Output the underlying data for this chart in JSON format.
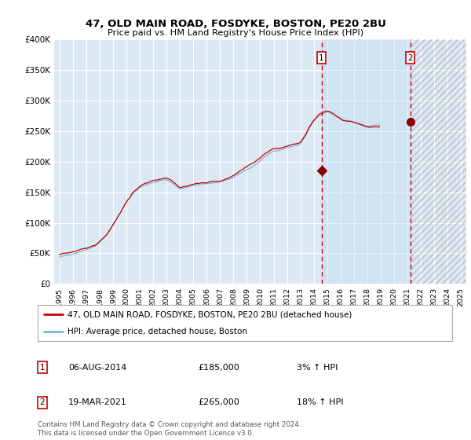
{
  "title": "47, OLD MAIN ROAD, FOSDYKE, BOSTON, PE20 2BU",
  "subtitle": "Price paid vs. HM Land Registry's House Price Index (HPI)",
  "background_color": "#ffffff",
  "plot_bg_color": "#dce9f5",
  "grid_color": "#ffffff",
  "hpi_line_color": "#7ab8d4",
  "price_line_color": "#cc0000",
  "marker_color": "#8b0000",
  "dashed_line_color": "#cc0000",
  "shade_color": "#cce0f0",
  "legend_label_price": "47, OLD MAIN ROAD, FOSDYKE, BOSTON, PE20 2BU (detached house)",
  "legend_label_hpi": "HPI: Average price, detached house, Boston",
  "annotation1_date": "06-AUG-2014",
  "annotation1_price": "£185,000",
  "annotation1_pct": "3% ↑ HPI",
  "annotation2_date": "19-MAR-2021",
  "annotation2_price": "£265,000",
  "annotation2_pct": "18% ↑ HPI",
  "footer": "Contains HM Land Registry data © Crown copyright and database right 2024.\nThis data is licensed under the Open Government Licence v3.0.",
  "ylim": [
    0,
    400000
  ],
  "yticks": [
    0,
    50000,
    100000,
    150000,
    200000,
    250000,
    300000,
    350000,
    400000
  ],
  "ytick_labels": [
    "£0",
    "£50K",
    "£100K",
    "£150K",
    "£200K",
    "£250K",
    "£300K",
    "£350K",
    "£400K"
  ],
  "marker1_x": 2014.58,
  "marker1_y": 185000,
  "marker2_x": 2021.21,
  "marker2_y": 265000,
  "xlim_left": 1994.6,
  "xlim_right": 2025.4,
  "hpi_monthly": {
    "x_start": 1995.0,
    "x_step": 0.08333,
    "values": [
      44000,
      45000,
      45500,
      46000,
      46500,
      47000,
      47200,
      47500,
      47800,
      48000,
      48500,
      49000,
      49500,
      50000,
      50500,
      51000,
      51500,
      52000,
      52500,
      53000,
      53500,
      54000,
      54500,
      55000,
      55500,
      56000,
      57000,
      58000,
      59000,
      60000,
      61000,
      62000,
      63000,
      64500,
      66000,
      67500,
      69000,
      71000,
      73000,
      75000,
      77000,
      79000,
      81000,
      83500,
      86000,
      88500,
      91000,
      94000,
      97000,
      100000,
      103000,
      106000,
      109000,
      112000,
      115000,
      118000,
      121000,
      124000,
      127000,
      130000,
      133000,
      136000,
      138000,
      140000,
      142500,
      145000,
      147000,
      149000,
      150500,
      152000,
      153500,
      155000,
      156500,
      158000,
      159000,
      160000,
      161000,
      162000,
      162500,
      163000,
      163500,
      164000,
      164500,
      165000,
      165500,
      166000,
      166500,
      167000,
      167500,
      168000,
      168500,
      169000,
      169500,
      170000,
      170000,
      170000,
      169500,
      169000,
      168000,
      167000,
      166000,
      165000,
      163500,
      162000,
      160500,
      159000,
      157500,
      156000,
      155000,
      155500,
      156000,
      156500,
      157000,
      157500,
      158000,
      158500,
      159000,
      159500,
      160000,
      160500,
      161000,
      161500,
      162000,
      162000,
      162000,
      162000,
      162500,
      163000,
      163000,
      163500,
      163500,
      164000,
      164000,
      164500,
      164500,
      164500,
      164500,
      164500,
      164500,
      165000,
      165000,
      165500,
      165500,
      165500,
      166000,
      166500,
      167000,
      167500,
      168000,
      168500,
      169000,
      169500,
      170000,
      171000,
      172000,
      173000,
      174000,
      175000,
      176000,
      177000,
      178000,
      179000,
      180000,
      181000,
      182000,
      183000,
      184000,
      185000,
      186000,
      187000,
      188000,
      189000,
      190000,
      191000,
      192000,
      193000,
      194500,
      196000,
      197500,
      199000,
      200500,
      202000,
      203500,
      205000,
      206500,
      208000,
      209500,
      211000,
      212500,
      214000,
      215000,
      216000,
      216500,
      217000,
      217500,
      218000,
      218500,
      219000,
      219500,
      220000,
      220500,
      221000,
      221500,
      222000,
      222500,
      223000,
      223500,
      224000,
      224500,
      225000,
      225500,
      226000,
      226500,
      227000,
      227500,
      228000,
      229000,
      231000,
      234000,
      237000,
      240000,
      243000,
      247000,
      251000,
      255000,
      258000,
      261000,
      264000,
      267000,
      269000,
      271000,
      273000,
      275000,
      276000,
      277000,
      278000,
      279000,
      280000,
      281000,
      282000,
      282000,
      282000,
      282000,
      281000,
      280000,
      279000,
      278000,
      277000,
      276000,
      275000,
      274000,
      273000,
      272000,
      271000,
      270000,
      269500,
      269000,
      268500,
      268000,
      267500,
      267000,
      266500,
      266000,
      265500,
      265000,
      264500,
      264000,
      263500,
      263000,
      262500,
      262000,
      261500,
      261000,
      260500,
      260000,
      259500,
      259000,
      259000,
      259500,
      260000,
      260500,
      261000,
      261500,
      262000,
      262000,
      262000,
      262000,
      262000
    ]
  }
}
